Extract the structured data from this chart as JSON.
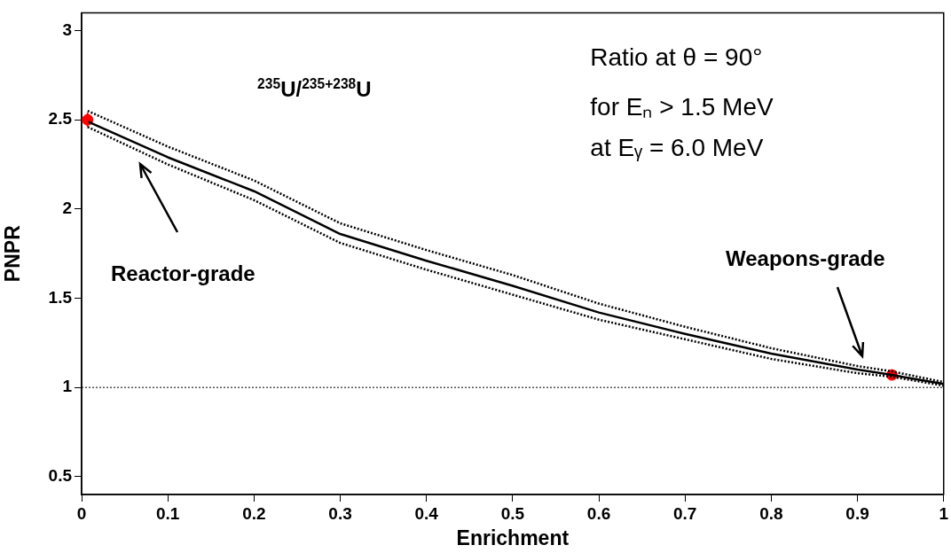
{
  "chart_data": {
    "type": "line",
    "xlabel": "Enrichment",
    "ylabel": "PNPR",
    "xlim": [
      0,
      1
    ],
    "xticks": [
      0,
      0.1,
      0.2,
      0.3,
      0.4,
      0.5,
      0.6,
      0.7,
      0.8,
      0.9,
      1
    ],
    "ylim": [
      0.4,
      3.1
    ],
    "yticks": [
      0.5,
      1,
      1.5,
      2,
      2.5,
      3
    ],
    "series": [
      {
        "color": "#000000",
        "line_style": "solid",
        "x": [
          0.007,
          0.1,
          0.2,
          0.3,
          0.4,
          0.5,
          0.6,
          0.7,
          0.8,
          0.9,
          0.94,
          1
        ],
        "values": [
          2.49,
          2.29,
          2.1,
          1.86,
          1.71,
          1.57,
          1.42,
          1.3,
          1.19,
          1.1,
          1.07,
          1.02
        ]
      },
      {
        "color": "#000000",
        "line_style": "dotted",
        "x": [
          0.007,
          0.1,
          0.2,
          0.3,
          0.4,
          0.5,
          0.6,
          0.7,
          0.8,
          0.9,
          0.94,
          1
        ],
        "values": [
          2.55,
          2.35,
          2.16,
          1.92,
          1.77,
          1.63,
          1.47,
          1.34,
          1.22,
          1.12,
          1.09,
          1.03
        ]
      },
      {
        "color": "#000000",
        "line_style": "dotted",
        "x": [
          0.007,
          0.1,
          0.2,
          0.3,
          0.4,
          0.5,
          0.6,
          0.7,
          0.8,
          0.9,
          0.94,
          1
        ],
        "values": [
          2.46,
          2.25,
          2.05,
          1.81,
          1.66,
          1.52,
          1.38,
          1.27,
          1.16,
          1.08,
          1.06,
          1.01
        ]
      },
      {
        "type": "scatter",
        "color": "#ff0000",
        "marker": "circle",
        "x": [
          0.007,
          0.94
        ],
        "values": [
          2.5,
          1.07
        ],
        "errors": [
          0.04,
          null
        ]
      }
    ],
    "ref_lines": [
      {
        "axis": "y",
        "value": 1,
        "color": "#000000",
        "line_style": "dotted"
      }
    ],
    "annotations": [
      "$^{235}$U/$^{235+238}$U",
      "Ratio at θ = 90°",
      "for Eₙ > 1.5 MeV",
      "at Eᵧ = 6.0 MeV",
      "Reactor-grade",
      "Weapons-grade"
    ]
  }
}
